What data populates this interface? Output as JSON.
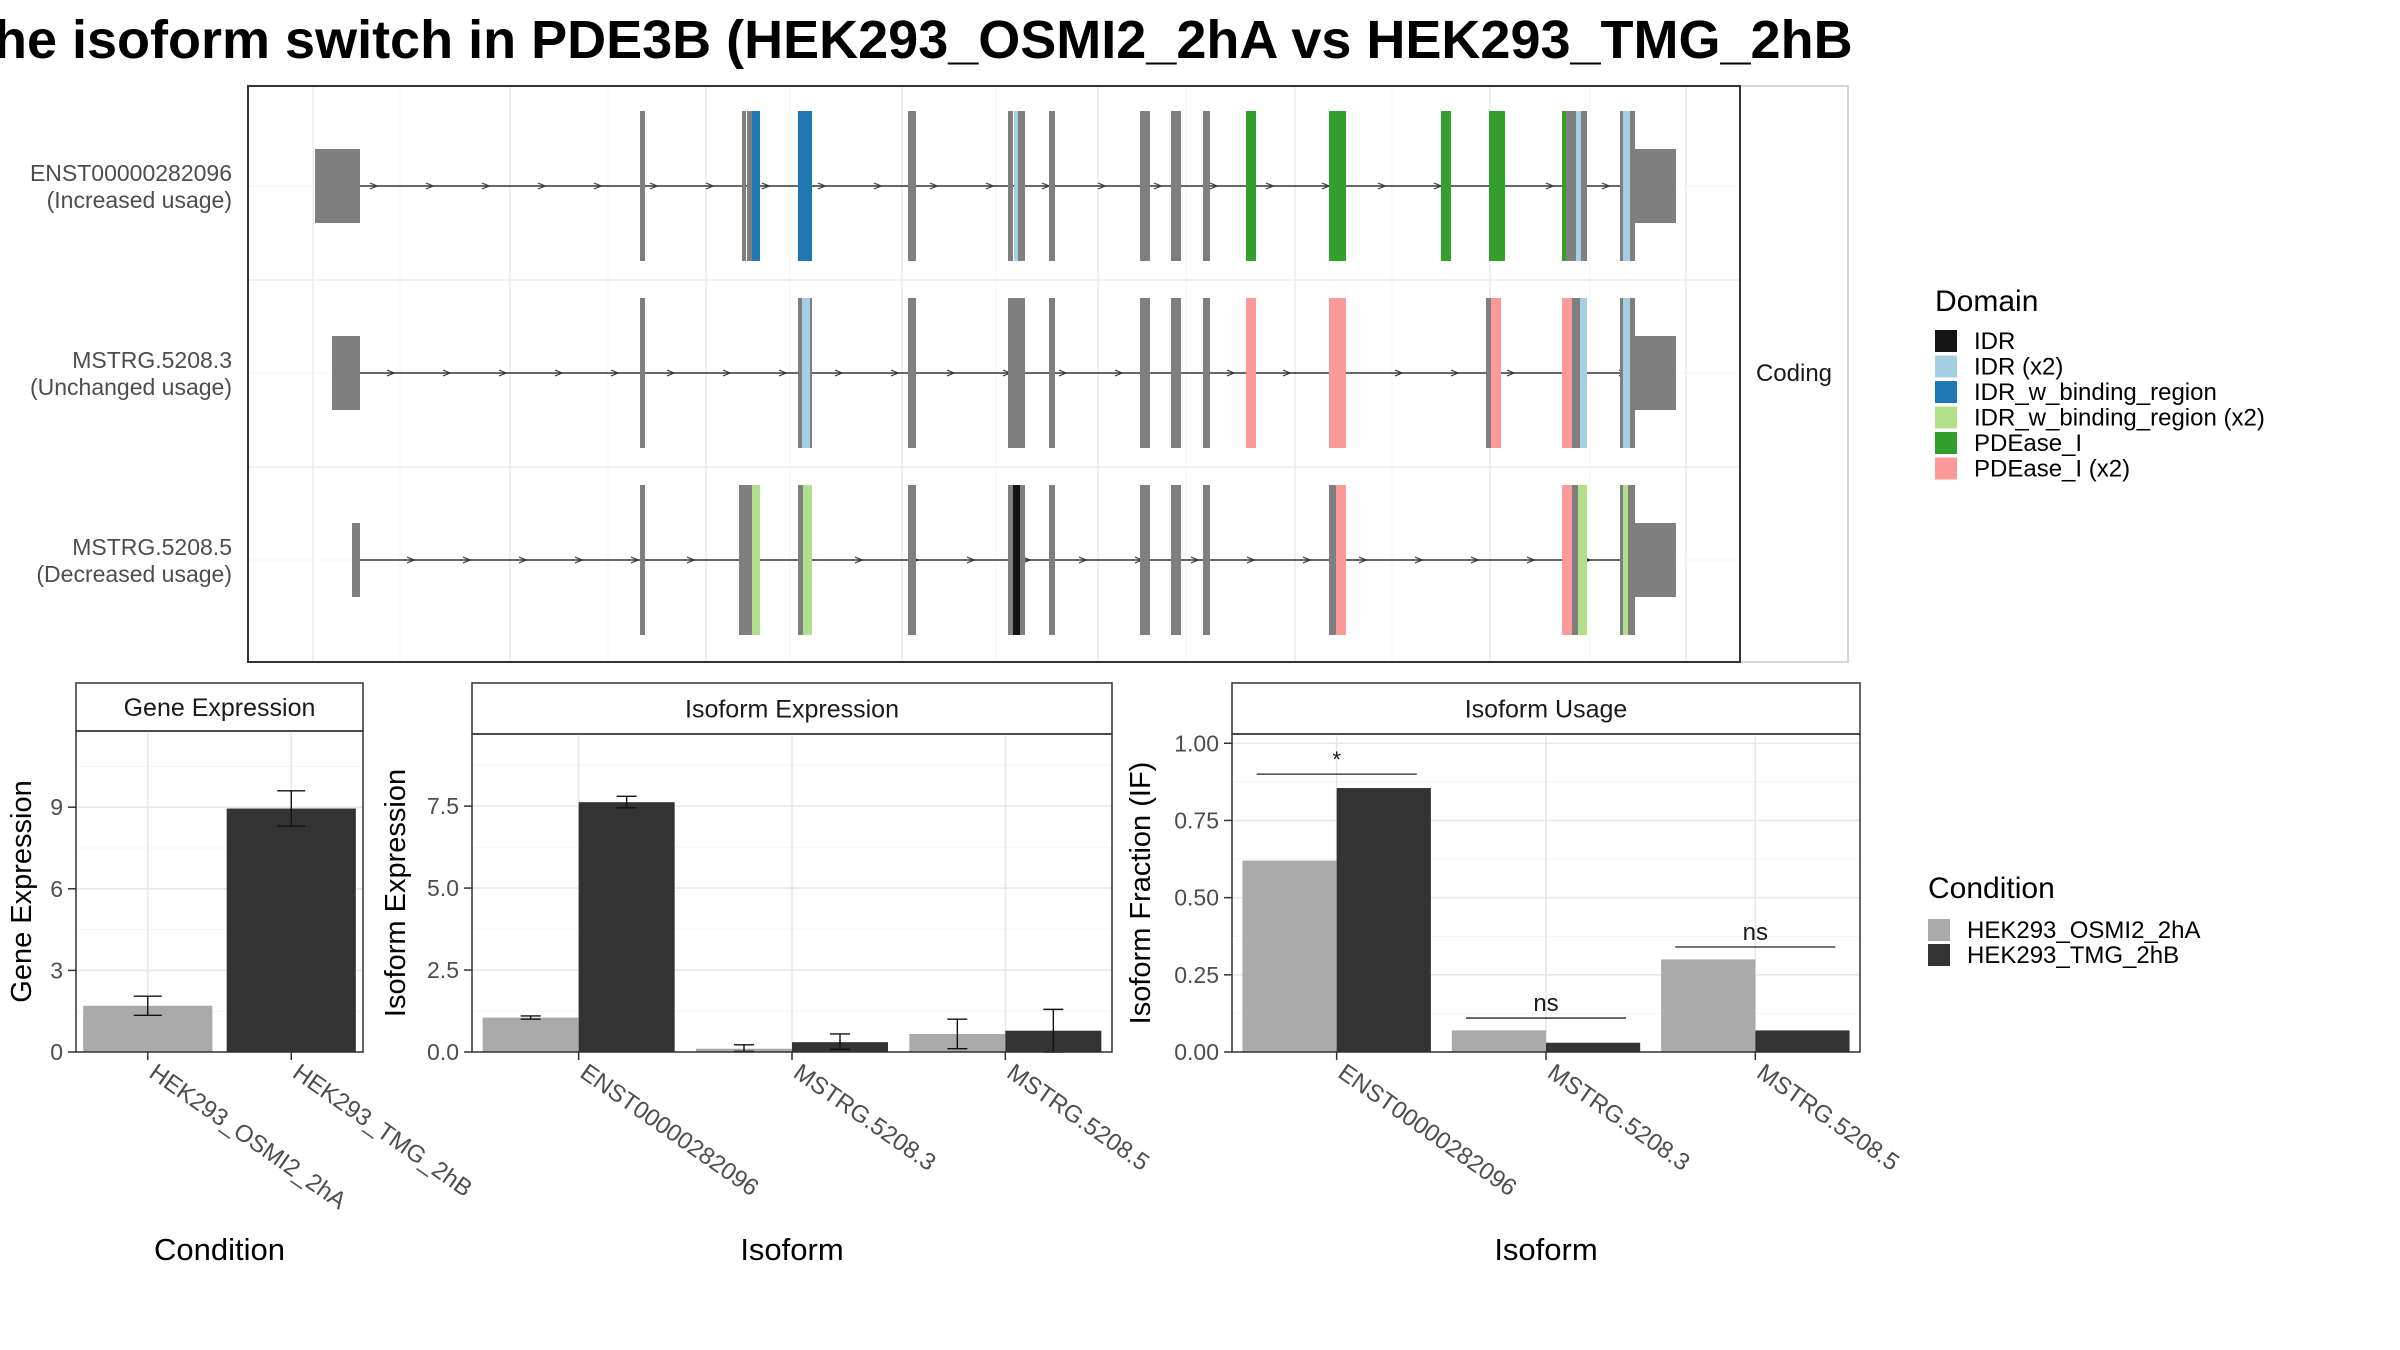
{
  "title": "he isoform switch in PDE3B (HEK293_OSMI2_2hA vs HEK293_TMG_2hB",
  "structure": {
    "strip_label": "Coding",
    "transcripts": [
      {
        "id": "ENST00000282096",
        "usage": "(Increased usage)"
      },
      {
        "id": "MSTRG.5208.3",
        "usage": "(Unchanged usage)"
      },
      {
        "id": "MSTRG.5208.5",
        "usage": "(Decreased usage)"
      }
    ]
  },
  "legends": {
    "domain": {
      "title": "Domain",
      "items": [
        {
          "label": "IDR",
          "color": "#141414"
        },
        {
          "label": "IDR (x2)",
          "color": "#a6cee3"
        },
        {
          "label": "IDR_w_binding_region",
          "color": "#1f78b4"
        },
        {
          "label": "IDR_w_binding_region (x2)",
          "color": "#b2df8a"
        },
        {
          "label": "PDEase_I",
          "color": "#33a02c"
        },
        {
          "label": "PDEase_I (x2)",
          "color": "#fb9a99"
        }
      ]
    },
    "condition": {
      "title": "Condition",
      "items": [
        {
          "label": "HEK293_OSMI2_2hA",
          "color": "#aaaaaa"
        },
        {
          "label": "HEK293_TMG_2hB",
          "color": "#333333"
        }
      ]
    }
  },
  "chart_data": [
    {
      "type": "bar",
      "title": "Gene Expression",
      "xlabel": "Condition",
      "ylabel": "Gene Expression",
      "categories": [
        "HEK293_OSMI2_2hA",
        "HEK293_TMG_2hB"
      ],
      "values": [
        1.7,
        8.95
      ],
      "errors": [
        [
          1.35,
          2.05
        ],
        [
          8.3,
          9.6
        ]
      ],
      "colors": [
        "#aaaaaa",
        "#333333"
      ],
      "ylim": [
        0,
        11.8
      ],
      "yticks": [
        0,
        3,
        6,
        9
      ],
      "ytick_labels": [
        "0",
        "3",
        "6",
        "9"
      ]
    },
    {
      "type": "bar",
      "title": "Isoform Expression",
      "xlabel": "Isoform",
      "ylabel": "Isoform Expression",
      "categories": [
        "ENST00000282096",
        "MSTRG.5208.3",
        "MSTRG.5208.5"
      ],
      "series": [
        {
          "values": [
            1.05,
            0.1,
            0.55
          ],
          "errors": [
            [
              1.0,
              1.1
            ],
            [
              0.02,
              0.22
            ],
            [
              0.1,
              1.0
            ]
          ],
          "color": "#aaaaaa"
        },
        {
          "values": [
            7.62,
            0.3,
            0.65
          ],
          "errors": [
            [
              7.45,
              7.8
            ],
            [
              0.08,
              0.55
            ],
            [
              0.0,
              1.3
            ]
          ],
          "color": "#333333"
        }
      ],
      "ylim": [
        0,
        9.7
      ],
      "yticks": [
        0,
        2.5,
        5,
        7.5
      ],
      "ytick_labels": [
        "0.0",
        "2.5",
        "5.0",
        "7.5"
      ]
    },
    {
      "type": "bar",
      "title": "Isoform Usage",
      "xlabel": "Isoform",
      "ylabel": "Isoform Fraction (IF)",
      "categories": [
        "ENST00000282096",
        "MSTRG.5208.3",
        "MSTRG.5208.5"
      ],
      "series": [
        {
          "values": [
            0.62,
            0.07,
            0.3
          ],
          "color": "#aaaaaa"
        },
        {
          "values": [
            0.855,
            0.03,
            0.07
          ],
          "color": "#333333"
        }
      ],
      "significance": [
        {
          "label": "*",
          "y": 0.9
        },
        {
          "label": "ns",
          "y": 0.11
        },
        {
          "label": "ns",
          "y": 0.34
        }
      ],
      "ylim": [
        0,
        1.03
      ],
      "yticks": [
        0,
        0.25,
        0.5,
        0.75,
        1.0
      ],
      "ytick_labels": [
        "0.00",
        "0.25",
        "0.50",
        "0.75",
        "1.00"
      ]
    }
  ]
}
